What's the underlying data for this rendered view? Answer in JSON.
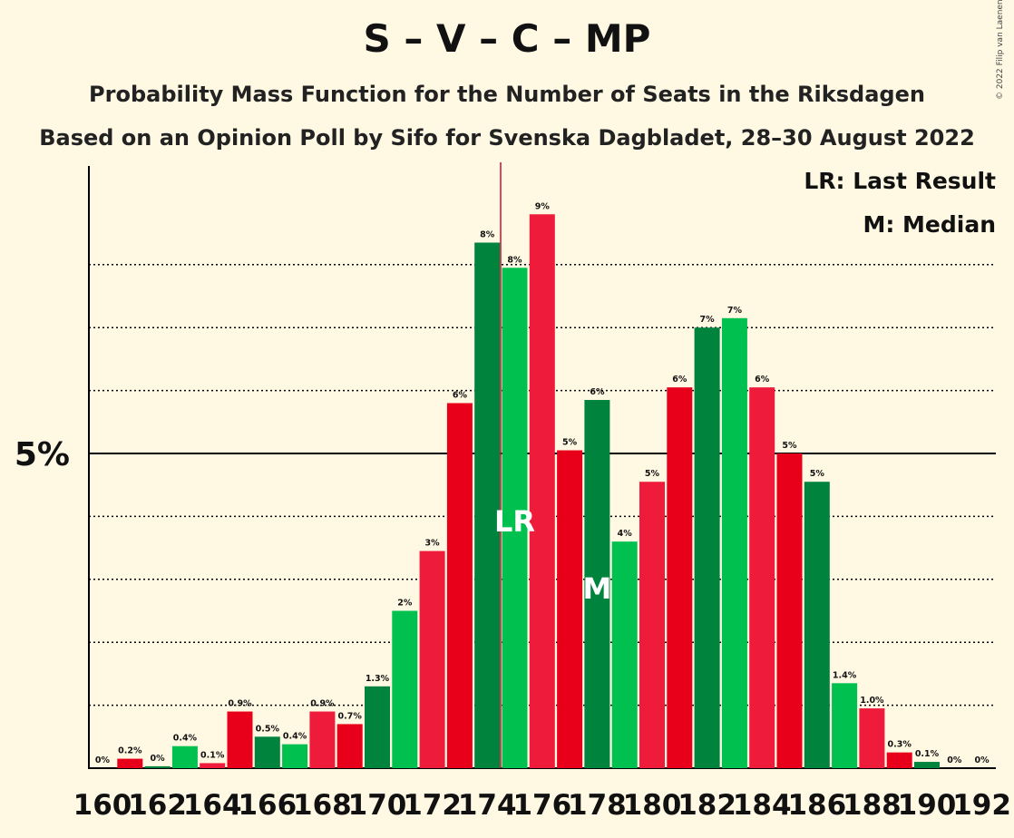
{
  "title": "S – V – C – MP",
  "subtitle1": "Probability Mass Function for the Number of Seats in the Riksdagen",
  "subtitle2": "Based on an Opinion Poll by Sifo for Svenska Dagbladet, 28–30 August 2022",
  "copyright": "© 2022 Filip van Laenen",
  "legend": {
    "lr": "LR: Last Result",
    "m": "M: Median"
  },
  "colors": {
    "background": "#fff8e3",
    "red": "#e8001b",
    "red_alt": "#ee1c3a",
    "green": "#00b140",
    "green_dark": "#00843d",
    "green_light": "#00c050"
  },
  "chart_data": {
    "type": "bar",
    "y_tick_label": "5%",
    "x_tick_labels": [
      "160",
      "162",
      "164",
      "166",
      "168",
      "170",
      "172",
      "174",
      "176",
      "178",
      "180",
      "182",
      "184",
      "186",
      "188",
      "190",
      "192"
    ],
    "categories": [
      160,
      161,
      162,
      163,
      164,
      165,
      166,
      167,
      168,
      169,
      170,
      171,
      172,
      173,
      174,
      175,
      176,
      177,
      178,
      179,
      180,
      181,
      182,
      183,
      184,
      185,
      186,
      187,
      188,
      189,
      190,
      191,
      192
    ],
    "values": [
      0,
      0.15,
      0.03,
      0.35,
      0.08,
      0.9,
      0.5,
      0.38,
      0.9,
      0.7,
      1.3,
      2.5,
      3.45,
      5.8,
      8.35,
      7.95,
      8.8,
      5.05,
      5.85,
      3.6,
      4.55,
      6.05,
      7.0,
      7.15,
      6.05,
      5.0,
      4.55,
      1.35,
      0.95,
      0.25,
      0.1,
      0,
      0
    ],
    "labels": [
      "0%",
      "0.2%",
      "0%",
      "0.4%",
      "0.1%",
      "0.9%",
      "0.5%",
      "0.4%",
      "0.9%",
      "0.7%",
      "1.3%",
      "2%",
      "3%",
      "6%",
      "8%",
      "8%",
      "9%",
      "5%",
      "6%",
      "4%",
      "5%",
      "6%",
      "7%",
      "7%",
      "6%",
      "5%",
      "5%",
      "1.4%",
      "1.0%",
      "0.3%",
      "0.1%",
      "0%",
      "0%"
    ],
    "color_keys": [
      "red",
      "red",
      "green_dark",
      "green_light",
      "red_alt",
      "red",
      "green_dark",
      "green_light",
      "red_alt",
      "red",
      "green_dark",
      "green_light",
      "red_alt",
      "red",
      "green_dark",
      "green_light",
      "red_alt",
      "red",
      "green_dark",
      "green_light",
      "red_alt",
      "red",
      "green_dark",
      "green_light",
      "red_alt",
      "red",
      "green_dark",
      "green_light",
      "red_alt",
      "red",
      "green_dark",
      "green_light",
      "red_alt"
    ],
    "last_result": 175,
    "last_result_label": "LR",
    "median": 178,
    "median_label": "M",
    "ylim": [
      0,
      9.6
    ],
    "major_gridline": 5,
    "minor_gridlines": [
      1,
      2,
      3,
      4,
      6,
      7,
      8
    ]
  }
}
